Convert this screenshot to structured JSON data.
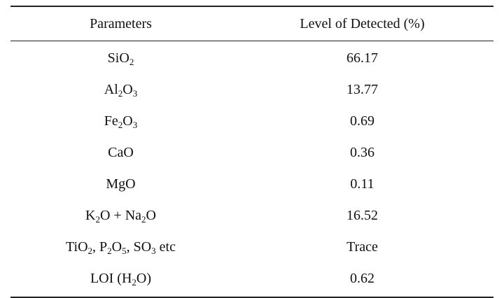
{
  "table": {
    "headers": [
      "Parameters",
      "Level of Detected (%)"
    ],
    "rows": [
      {
        "parameter": [
          [
            "Si",
            ""
          ],
          [
            "O",
            "2"
          ]
        ],
        "level": "66.17"
      },
      {
        "parameter": [
          [
            "Al",
            "2"
          ],
          [
            "O",
            "3"
          ]
        ],
        "level": "13.77"
      },
      {
        "parameter": [
          [
            "Fe",
            "2"
          ],
          [
            "O",
            "3"
          ]
        ],
        "level": "0.69"
      },
      {
        "parameter": [
          [
            "CaO",
            ""
          ]
        ],
        "level": "0.36"
      },
      {
        "parameter": [
          [
            "MgO",
            ""
          ]
        ],
        "level": "0.11"
      },
      {
        "parameter": [
          [
            "K",
            "2"
          ],
          [
            "O + Na",
            "2"
          ],
          [
            "O",
            ""
          ]
        ],
        "level": "16.52"
      },
      {
        "parameter": [
          [
            "TiO",
            "2"
          ],
          [
            ", P",
            "2"
          ],
          [
            "O",
            "5"
          ],
          [
            ", SO",
            "3"
          ],
          [
            " etc",
            ""
          ]
        ],
        "level": "Trace"
      },
      {
        "parameter": [
          [
            "LOI (H",
            "2"
          ],
          [
            "O)",
            ""
          ]
        ],
        "level": "0.62"
      }
    ]
  }
}
